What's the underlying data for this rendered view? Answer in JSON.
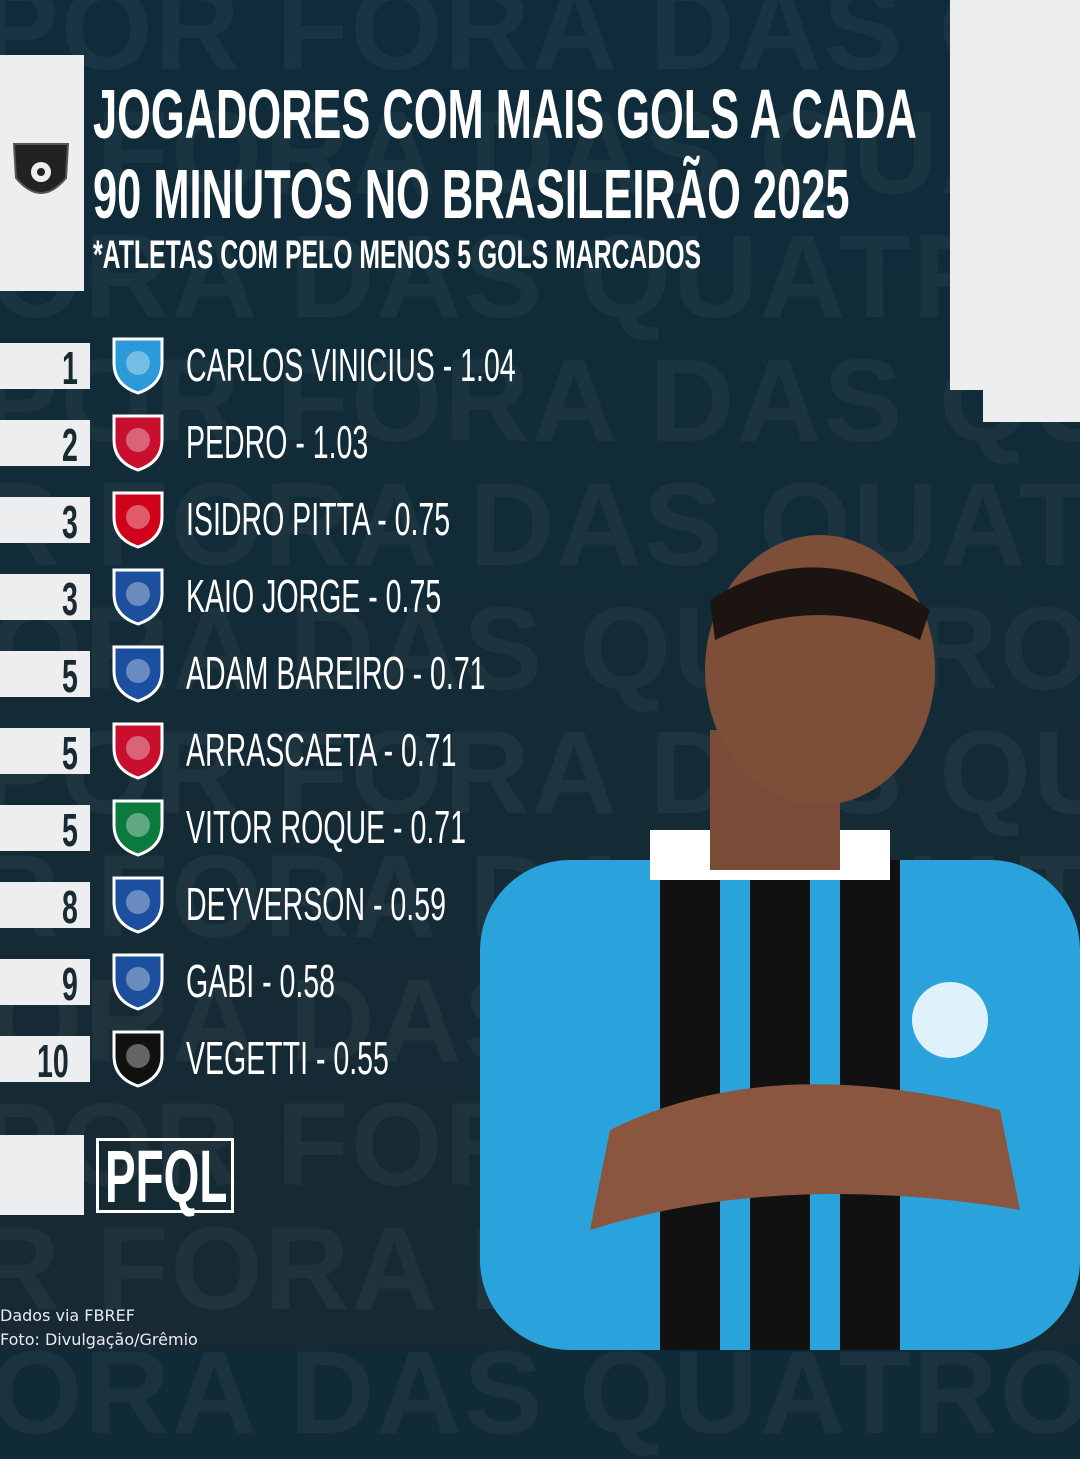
{
  "header": {
    "title_line1": "JOGADORES COM MAIS GOLS A CADA",
    "title_line2": "90 MINUTOS NO BRASILEIRÃO 2025",
    "subtitle": "*ATLETAS COM PELO MENOS 5 GOLS MARCADOS",
    "league_icon": "brasileirao-logo-icon"
  },
  "watermark": "POR FORA DAS QUATRO LINHAS",
  "ranking": [
    {
      "rank": "1",
      "player": "CARLOS VINICIUS - 1.04",
      "club": "gremio",
      "color": "#2a9ad8"
    },
    {
      "rank": "2",
      "player": "PEDRO - 1.03",
      "club": "flamengo",
      "color": "#c8102e"
    },
    {
      "rank": "3",
      "player": "ISIDRO PITTA - 0.75",
      "club": "red-bull-bragantino",
      "color": "#d0021b"
    },
    {
      "rank": "3",
      "player": "KAIO JORGE - 0.75",
      "club": "cruzeiro",
      "color": "#1c4f9c"
    },
    {
      "rank": "5",
      "player": "ADAM BAREIRO - 0.71",
      "club": "fortaleza",
      "color": "#1d4fa0"
    },
    {
      "rank": "5",
      "player": "ARRASCAETA - 0.71",
      "club": "flamengo",
      "color": "#c8102e"
    },
    {
      "rank": "5",
      "player": "VITOR ROQUE - 0.71",
      "club": "palmeiras",
      "color": "#0a7a3e"
    },
    {
      "rank": "8",
      "player": "DEYVERSON - 0.59",
      "club": "fortaleza",
      "color": "#1d4fa0"
    },
    {
      "rank": "9",
      "player": "GABI - 0.58",
      "club": "cruzeiro",
      "color": "#1c4f9c"
    },
    {
      "rank": "10",
      "player": "VEGETTI - 0.55",
      "club": "vasco",
      "color": "#111111"
    }
  ],
  "brand": {
    "logo_text": "PFQL"
  },
  "footer": {
    "source": "Dados via FBREF",
    "photo_credit": "Foto: Divulgação/Grêmio"
  }
}
